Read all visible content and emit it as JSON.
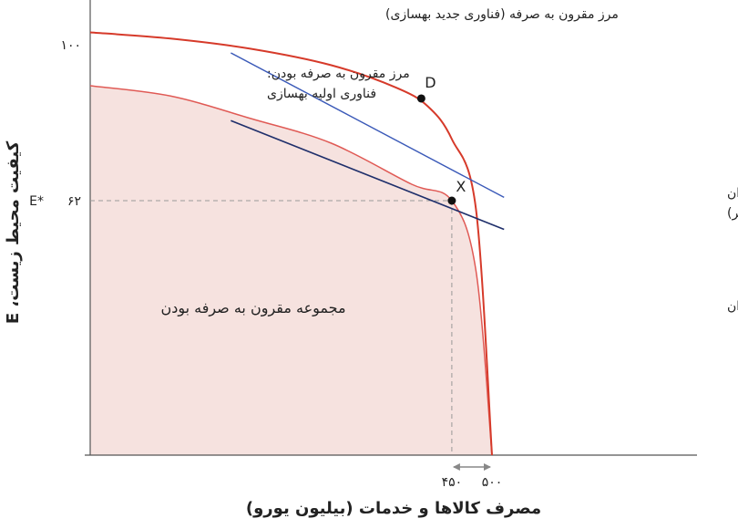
{
  "chart_data": {
    "type": "line",
    "xlabel": "مصرف کالاها و خدمات (بیلیون یورو)",
    "ylabel": "کیفیت محیط زیست، E",
    "x_ticks": [
      {
        "value": 450,
        "label": "۴۵۰"
      },
      {
        "value": 500,
        "label": "۵۰۰"
      }
    ],
    "y_ticks": [
      {
        "value": 62,
        "label": "۶۲"
      },
      {
        "value": 100,
        "label": "۱۰۰"
      }
    ],
    "y_marker_label": "E*",
    "region_label": "مجموعه مقرون به صرفه بودن",
    "frontier_old": {
      "label_line1": "مرز مقرون به صرفه بودن:",
      "label_line2": "فناوری اولیه بهسازی",
      "x": [
        0,
        100,
        200,
        300,
        400,
        450,
        480,
        500
      ],
      "y": [
        90,
        87.5,
        82,
        76,
        66,
        62,
        45,
        0
      ]
    },
    "frontier_new": {
      "label": "مرز مقرون به صرفه (فناوری جدید بهسازی)",
      "x": [
        0,
        100,
        200,
        300,
        380,
        420,
        450,
        480,
        500
      ],
      "y": [
        103,
        101.5,
        99,
        95,
        89.6,
        85,
        77,
        60,
        0
      ]
    },
    "indifference_low": {
      "label": "منحنی بی‌تفاوتی شهروندان",
      "x1": 175,
      "y1": 81.5,
      "x2": 515,
      "y2": 55
    },
    "indifference_high": {
      "label_line1": "منحنی بی‌تفاوتی شهروندان",
      "label_line2": "(سودمندی بالاتر)",
      "x1": 175,
      "y1": 98,
      "x2": 515,
      "y2": 62.8
    },
    "points": [
      {
        "name": "X",
        "x": 450,
        "y": 62
      },
      {
        "name": "D",
        "x": 412,
        "y": 86.9
      }
    ],
    "annotation": "arrow between x = 450 and x = 500"
  }
}
